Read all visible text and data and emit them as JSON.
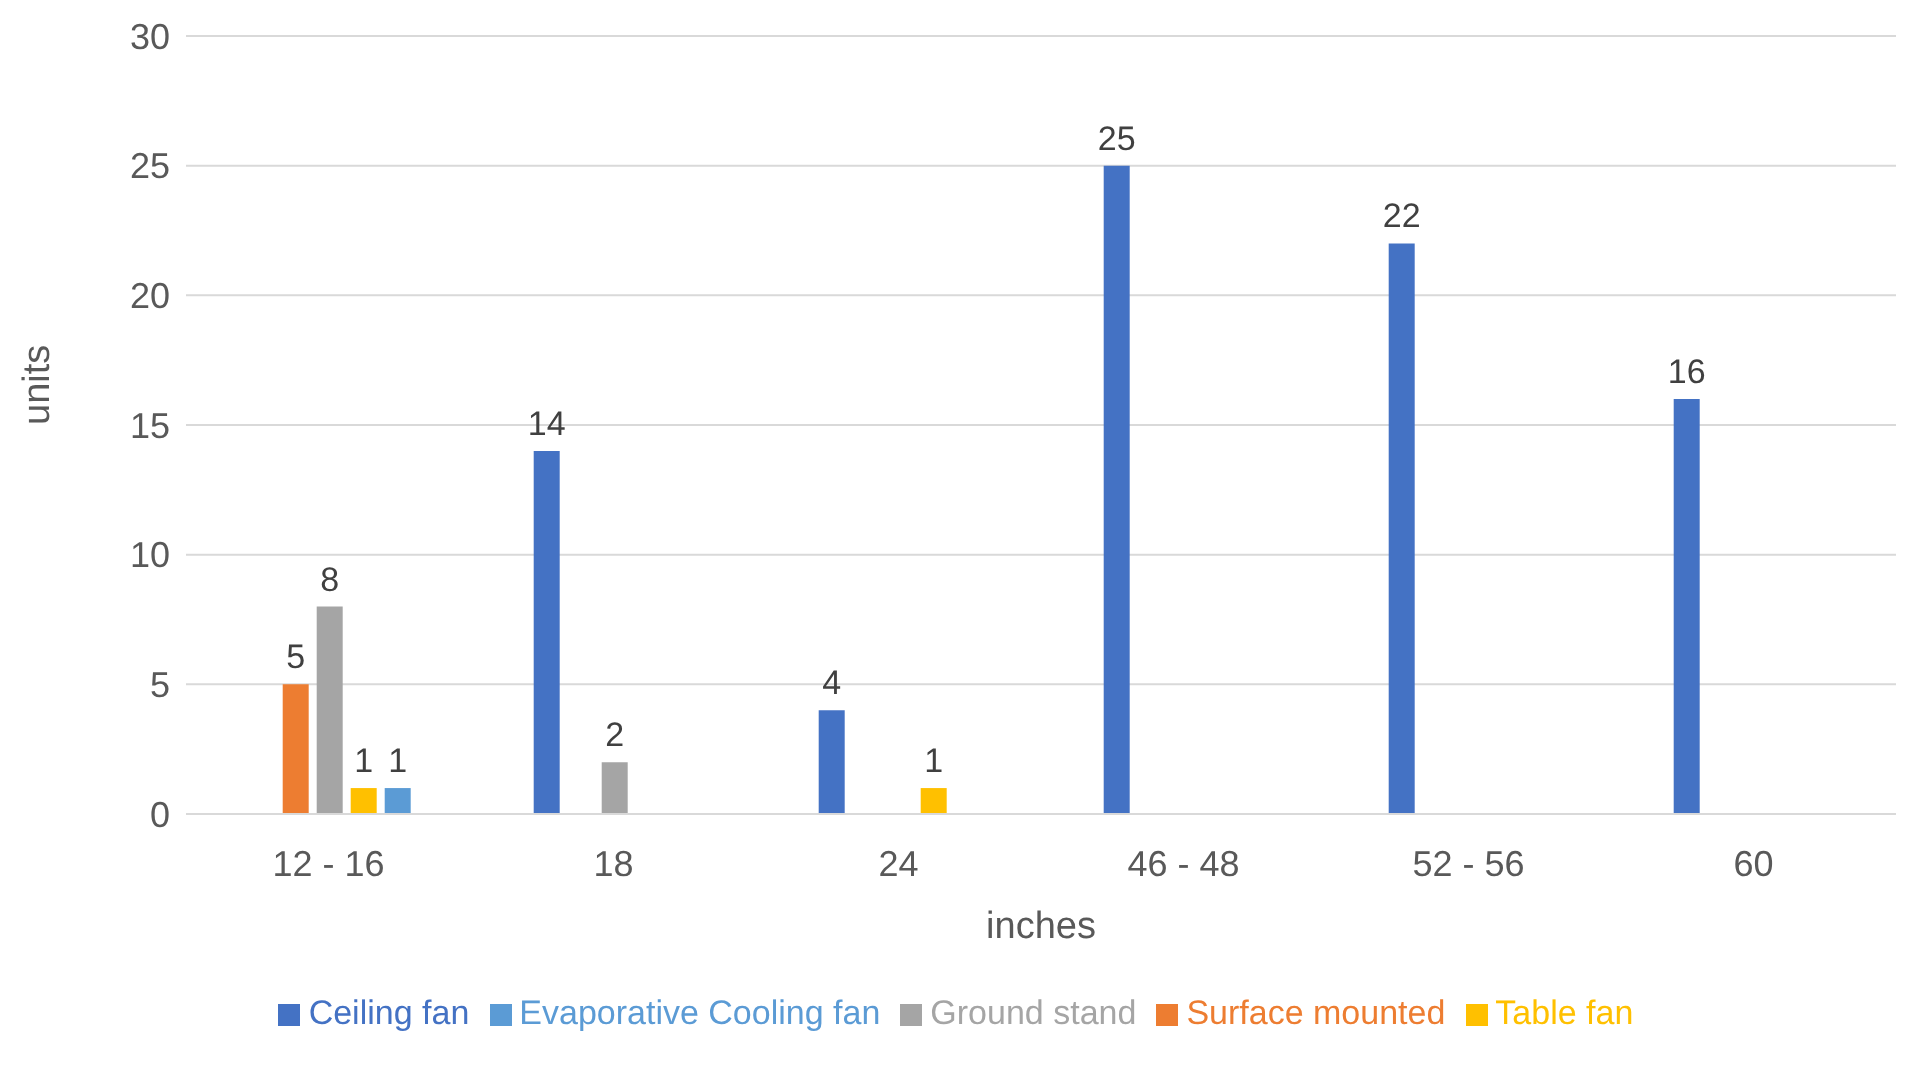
{
  "chart_data": {
    "type": "bar",
    "xlabel": "inches",
    "ylabel": "units",
    "categories": [
      "12 - 16",
      "18",
      "24",
      "46 - 48",
      "52 - 56",
      "60"
    ],
    "series": [
      {
        "name": "Ceiling fan",
        "color": "#4472c4",
        "values": [
          null,
          14,
          4,
          25,
          22,
          16
        ]
      },
      {
        "name": "Surface mounted",
        "color": "#ed7d31",
        "values": [
          5,
          null,
          null,
          null,
          null,
          null
        ]
      },
      {
        "name": "Ground stand",
        "color": "#a5a5a5",
        "values": [
          8,
          2,
          null,
          null,
          null,
          null
        ]
      },
      {
        "name": "Table fan",
        "color": "#ffc000",
        "values": [
          1,
          null,
          1,
          null,
          null,
          null
        ]
      },
      {
        "name": "Evaporative Cooling fan",
        "color": "#5b9bd5",
        "values": [
          1,
          null,
          null,
          null,
          null,
          null
        ]
      }
    ],
    "ylim": [
      0,
      30
    ],
    "yticks": [
      0,
      5,
      10,
      15,
      20,
      25,
      30
    ],
    "grid": "y",
    "legend": "bottom",
    "data_labels": true
  }
}
